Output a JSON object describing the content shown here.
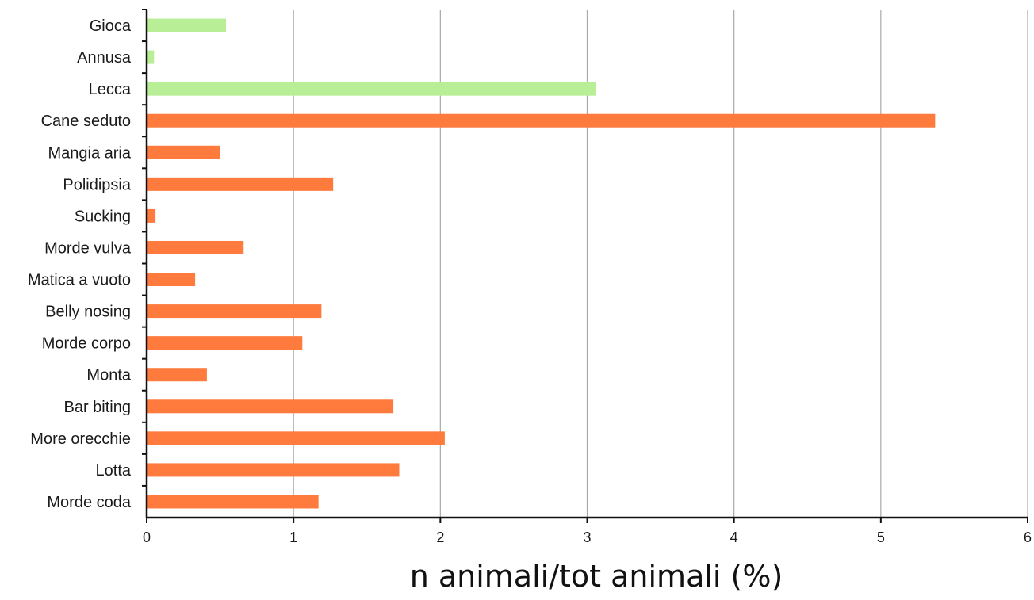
{
  "chart_data": {
    "type": "bar",
    "orientation": "horizontal",
    "categories": [
      "Gioca",
      "Annusa",
      "Lecca",
      "Cane seduto",
      "Mangia aria",
      "Polidipsia",
      "Sucking",
      "Morde vulva",
      "Matica a vuoto",
      "Belly nosing",
      "Morde corpo",
      "Monta",
      "Bar biting",
      "More orecchie",
      "Lotta",
      "Morde coda"
    ],
    "values": [
      0.54,
      0.05,
      3.06,
      5.37,
      0.5,
      1.27,
      0.06,
      0.66,
      0.33,
      1.19,
      1.06,
      0.41,
      1.68,
      2.03,
      1.72,
      1.17
    ],
    "bar_colors": [
      "#b8ef96",
      "#b8ef96",
      "#b8ef96",
      "#ff7a3d",
      "#ff7a3d",
      "#ff7a3d",
      "#ff7a3d",
      "#ff7a3d",
      "#ff7a3d",
      "#ff7a3d",
      "#ff7a3d",
      "#ff7a3d",
      "#ff7a3d",
      "#ff7a3d",
      "#ff7a3d",
      "#ff7a3d"
    ],
    "title": "",
    "xlabel": "n animali/tot animali (%)",
    "ylabel": "",
    "xlim": [
      0,
      6
    ],
    "xticks": [
      "0",
      "1",
      "2",
      "3",
      "4",
      "5",
      "6"
    ],
    "grid": "vertical",
    "legend": "none"
  }
}
